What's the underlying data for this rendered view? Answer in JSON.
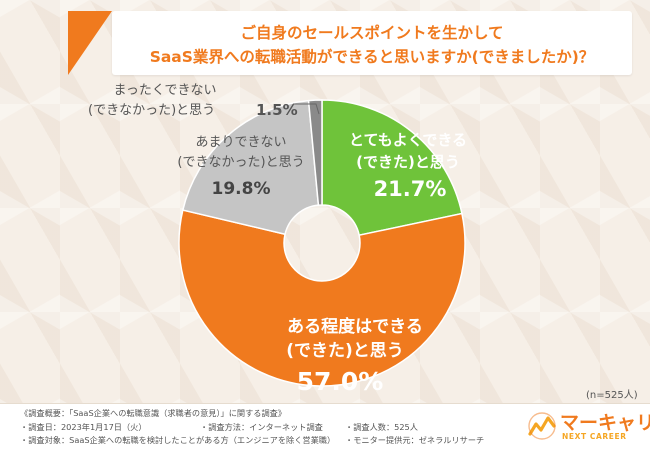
{
  "title": {
    "line1": "ご自身のセールスポイントを生かして",
    "line2": "SaaS業界への転職活動ができると思いますか(できましたか)？"
  },
  "chart_data": {
    "type": "pie",
    "donut": true,
    "start_angle_deg": 0,
    "direction": "clockwise",
    "slices": [
      {
        "name_line1": "とてもよくできる",
        "name_line2": "(できた)と思う",
        "value": 21.7,
        "value_text": "21.7%",
        "color": "#6fc33a"
      },
      {
        "name_line1": "ある程度はできる",
        "name_line2": "(できた)と思う",
        "value": 57.0,
        "value_text": "57.0%",
        "color": "#f07a1e"
      },
      {
        "name_line1": "あまりできない",
        "name_line2": "(できなかった)と思う",
        "value": 19.8,
        "value_text": "19.8%",
        "color": "#c5c5c5"
      },
      {
        "name_line1": "まったくできない",
        "name_line2": "(できなかった)と思う",
        "value": 1.5,
        "value_text": "1.5%",
        "color": "#8a8a8a"
      }
    ]
  },
  "n_note": "(n=525人)",
  "footer": {
    "heading": "《調査概要：「SaaS企業への転職意識（求職者の意見）」に関する調査》",
    "date": "・調査日：2023年1月17日（火）",
    "method": "・調査方法：インターネット調査",
    "count": "・調査人数：525人",
    "target": "・調査対象：SaaS企業への転職を検討したことがある方（エンジニアを除く営業職）",
    "provider": "・モニター提供元：ゼネラルリサーチ"
  },
  "logo": {
    "name": "マーキャリ",
    "sub": "NEXT CAREER"
  }
}
